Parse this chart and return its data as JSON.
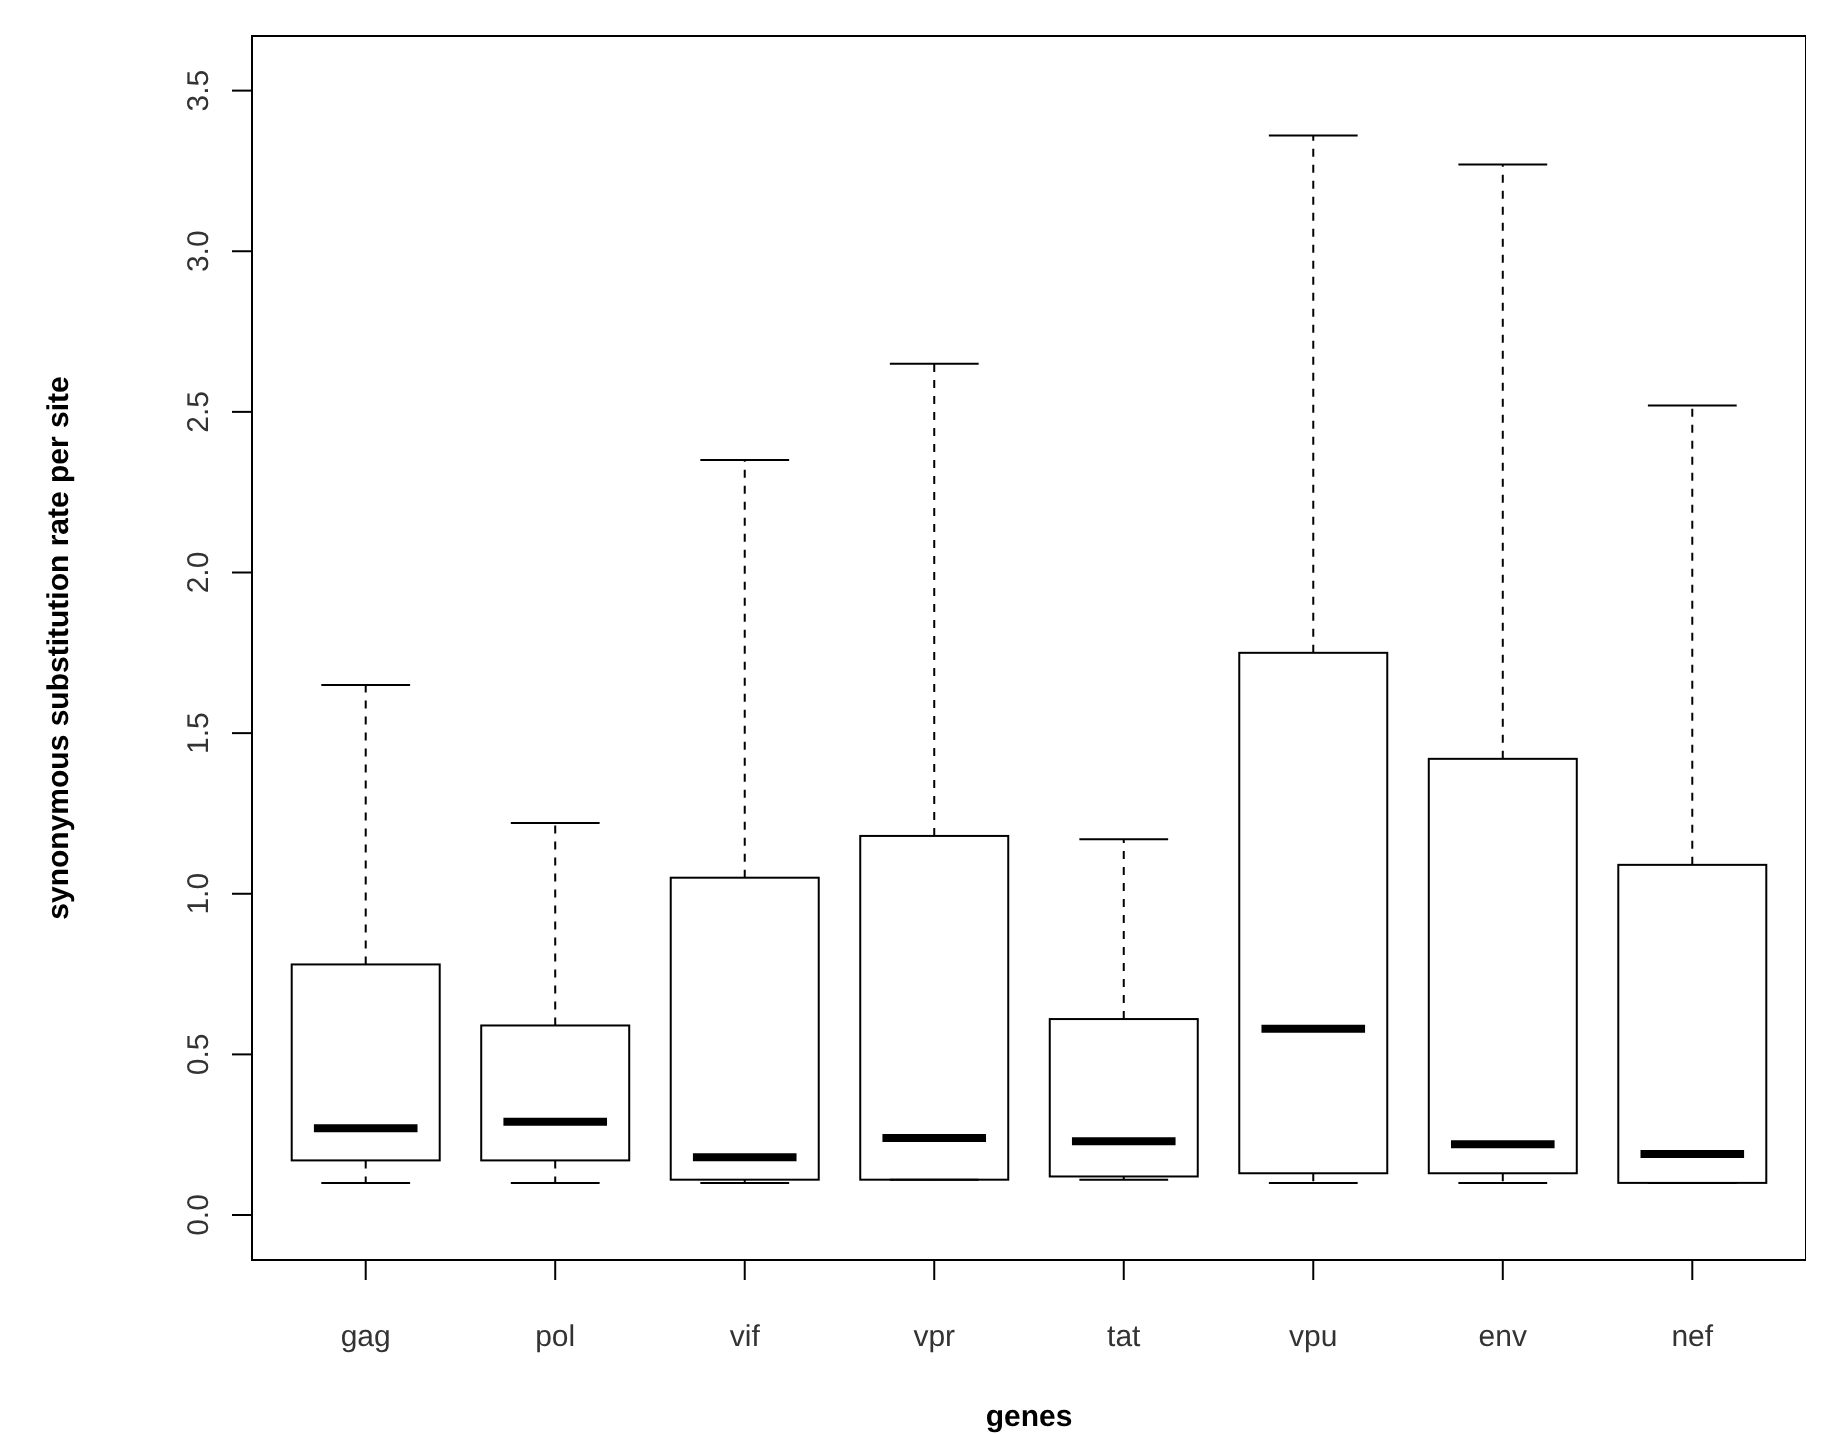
{
  "chart_data": {
    "type": "box",
    "xlabel": "genes",
    "ylabel": "synonymous substitution rate per site",
    "categories": [
      "gag",
      "pol",
      "vif",
      "vpr",
      "tat",
      "vpu",
      "env",
      "nef"
    ],
    "ylim": [
      -0.14,
      3.67
    ],
    "yticks": [
      {
        "value": 0,
        "label": "0.0"
      },
      0.5,
      {
        "value": 1,
        "label": "1.0"
      },
      1.5,
      {
        "value": 2,
        "label": "2.0"
      },
      2.5,
      {
        "value": 3,
        "label": "3.0"
      },
      3.5
    ],
    "color": "#000000",
    "boxes": [
      {
        "low": 0.1,
        "q1": 0.17,
        "median": 0.27,
        "q3": 0.78,
        "high": 1.65
      },
      {
        "low": 0.1,
        "q1": 0.17,
        "median": 0.29,
        "q3": 0.59,
        "high": 1.22
      },
      {
        "low": 0.1,
        "q1": 0.11,
        "median": 0.18,
        "q3": 1.05,
        "high": 2.35
      },
      {
        "low": 0.11,
        "q1": 0.11,
        "median": 0.24,
        "q3": 1.18,
        "high": 2.65
      },
      {
        "low": 0.11,
        "q1": 0.12,
        "median": 0.23,
        "q3": 0.61,
        "high": 1.17
      },
      {
        "low": 0.1,
        "q1": 0.13,
        "median": 0.58,
        "q3": 1.75,
        "high": 3.36
      },
      {
        "low": 0.1,
        "q1": 0.13,
        "median": 0.22,
        "q3": 1.42,
        "high": 3.27
      },
      {
        "low": 0.1,
        "q1": 0.1,
        "median": 0.19,
        "q3": 1.09,
        "high": 2.52
      }
    ]
  }
}
